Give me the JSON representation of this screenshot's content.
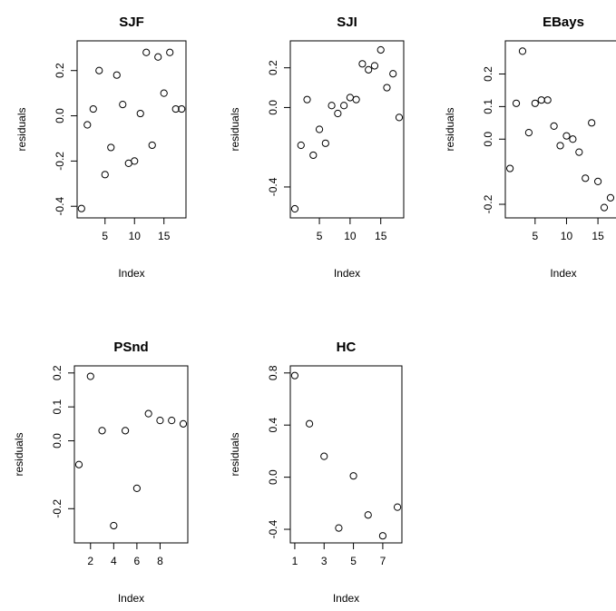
{
  "chart_data": [
    {
      "type": "scatter",
      "title": "SJF",
      "xlabel": "Index",
      "ylabel": "residuals",
      "xlim": [
        1,
        18
      ],
      "ylim": [
        -0.42,
        0.3
      ],
      "xticks": [
        5,
        10,
        15
      ],
      "yticks": [
        -0.4,
        -0.2,
        0.0,
        0.2
      ],
      "ytick_labels": [
        "-0.4",
        "-0.2",
        "0.0",
        "0.2"
      ],
      "y": [
        -0.41,
        -0.04,
        0.03,
        0.2,
        -0.26,
        -0.14,
        0.18,
        0.05,
        -0.21,
        -0.2,
        0.01,
        0.28,
        -0.13,
        0.26,
        0.1,
        0.28,
        0.03,
        0.03
      ]
    },
    {
      "type": "scatter",
      "title": "SJI",
      "xlabel": "Index",
      "ylabel": "residuals",
      "xlim": [
        1,
        18
      ],
      "ylim": [
        -0.52,
        0.3
      ],
      "xticks": [
        5,
        10,
        15
      ],
      "yticks": [
        -0.4,
        0.0,
        0.2
      ],
      "ytick_labels": [
        "-0.4",
        "0.0",
        "0.2"
      ],
      "y": [
        -0.51,
        -0.19,
        0.04,
        -0.24,
        -0.11,
        -0.18,
        0.01,
        -0.03,
        0.01,
        0.05,
        0.04,
        0.22,
        0.19,
        0.21,
        0.29,
        0.1,
        0.17,
        -0.05
      ]
    },
    {
      "type": "scatter",
      "title": "EBays",
      "xlabel": "Index",
      "ylabel": "residuals",
      "xlim": [
        1,
        18
      ],
      "ylim": [
        -0.22,
        0.28
      ],
      "xticks": [
        5,
        10,
        15
      ],
      "yticks": [
        -0.2,
        0.0,
        0.1,
        0.2
      ],
      "ytick_labels": [
        "-0.2",
        "0.0",
        "0.1",
        "0.2"
      ],
      "y": [
        -0.09,
        0.11,
        0.27,
        0.02,
        0.11,
        0.12,
        0.12,
        0.04,
        -0.02,
        0.01,
        0.0,
        -0.04,
        -0.12,
        0.05,
        -0.13,
        -0.21,
        -0.18
      ]
    },
    {
      "type": "scatter",
      "title": "PSnd",
      "xlabel": "Index",
      "ylabel": "residuals",
      "xlim": [
        1,
        10
      ],
      "ylim": [
        -0.28,
        0.2
      ],
      "xticks": [
        2,
        4,
        6,
        8
      ],
      "yticks": [
        -0.2,
        0.0,
        0.1,
        0.2
      ],
      "ytick_labels": [
        "-0.2",
        "0.0",
        "0.1",
        "0.2"
      ],
      "y": [
        -0.07,
        0.19,
        0.03,
        -0.25,
        0.03,
        -0.14,
        0.08,
        0.06,
        0.06,
        0.05
      ]
    },
    {
      "type": "scatter",
      "title": "HC",
      "xlabel": "Index",
      "ylabel": "residuals",
      "xlim": [
        1,
        8
      ],
      "ylim": [
        -0.45,
        0.8
      ],
      "xticks": [
        1,
        3,
        5,
        7
      ],
      "yticks": [
        -0.4,
        0.0,
        0.4,
        0.8
      ],
      "ytick_labels": [
        "-0.4",
        "0.0",
        "0.4",
        "0.8"
      ],
      "y": [
        0.78,
        0.41,
        0.16,
        -0.39,
        0.01,
        -0.29,
        -0.45,
        -0.23
      ]
    }
  ]
}
